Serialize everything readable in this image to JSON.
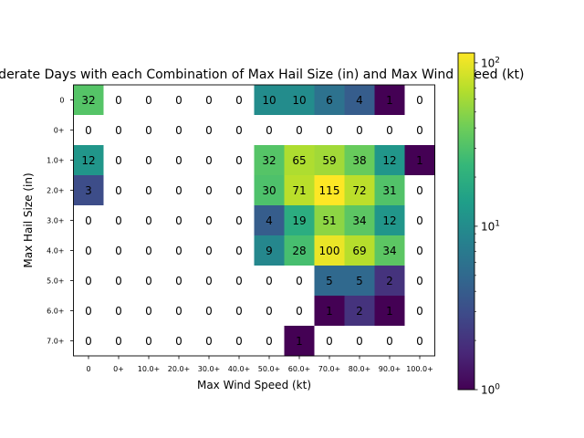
{
  "chart_data": {
    "type": "heatmap",
    "title": "Moderate Days with each Combination of Max Hail Size (in) and Max Wind Speed (kt)",
    "xlabel": "Max Wind Speed (kt)",
    "ylabel": "Max Hail Size (in)",
    "x_categories": [
      "0",
      "0+",
      "10.0+",
      "20.0+",
      "30.0+",
      "40.0+",
      "50.0+",
      "60.0+",
      "70.0+",
      "80.0+",
      "90.0+",
      "100.0+"
    ],
    "y_categories": [
      "0",
      "0+",
      "1.0+",
      "2.0+",
      "3.0+",
      "4.0+",
      "5.0+",
      "6.0+",
      "7.0+"
    ],
    "values": [
      [
        32,
        0,
        0,
        0,
        0,
        0,
        10,
        10,
        6,
        4,
        1,
        0
      ],
      [
        0,
        0,
        0,
        0,
        0,
        0,
        0,
        0,
        0,
        0,
        0,
        0
      ],
      [
        12,
        0,
        0,
        0,
        0,
        0,
        32,
        65,
        59,
        38,
        12,
        1
      ],
      [
        3,
        0,
        0,
        0,
        0,
        0,
        30,
        71,
        115,
        72,
        31,
        0
      ],
      [
        0,
        0,
        0,
        0,
        0,
        0,
        4,
        19,
        51,
        34,
        12,
        0
      ],
      [
        0,
        0,
        0,
        0,
        0,
        0,
        9,
        28,
        100,
        69,
        34,
        0
      ],
      [
        0,
        0,
        0,
        0,
        0,
        0,
        0,
        0,
        5,
        5,
        2,
        0
      ],
      [
        0,
        0,
        0,
        0,
        0,
        0,
        0,
        0,
        1,
        2,
        1,
        0
      ],
      [
        0,
        0,
        0,
        0,
        0,
        0,
        0,
        1,
        0,
        0,
        0,
        0
      ]
    ],
    "colorscale": "viridis",
    "color_scale_type": "log",
    "color_range": [
      1,
      115
    ],
    "zero_color": "#ffffff",
    "colorbar": {
      "ticks": [
        {
          "value": 1,
          "base": "10",
          "exp": "0"
        },
        {
          "value": 10,
          "base": "10",
          "exp": "1"
        },
        {
          "value": 100,
          "base": "10",
          "exp": "2"
        }
      ]
    }
  }
}
